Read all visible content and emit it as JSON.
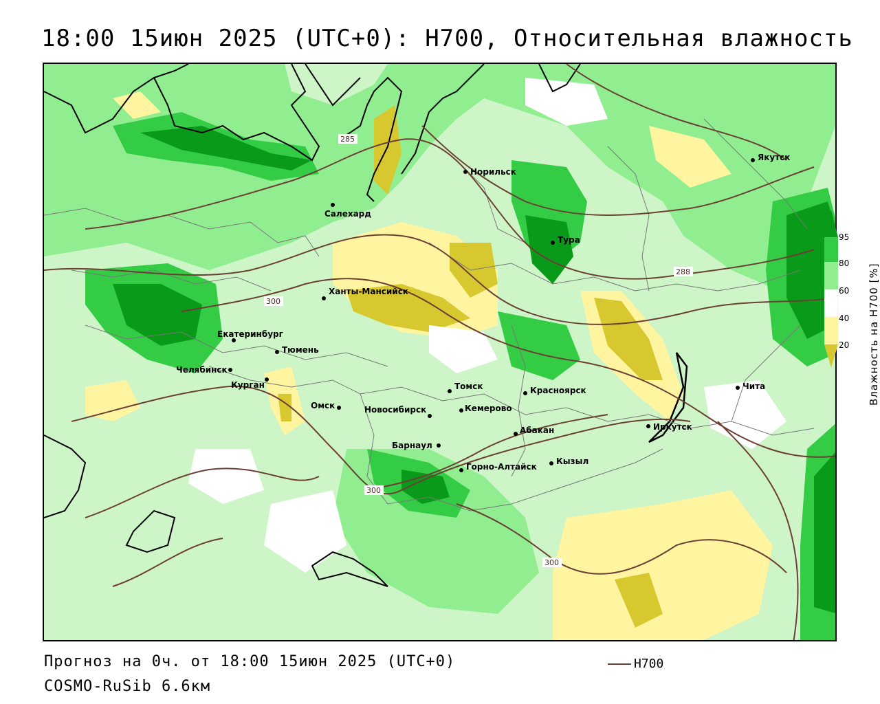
{
  "title": "18:00 15июн 2025 (UTC+0): H700, Относительная влажность",
  "footer": {
    "forecast": "Прогноз на 0ч. от 18:00 15июн 2025 (UTC+0)",
    "model": "COSMO-RuSib 6.6км",
    "contour_legend": "H700"
  },
  "colorbar": {
    "title": "Влажность на H700 [%]",
    "ticks": [
      "95",
      "80",
      "60",
      "40",
      "20"
    ],
    "colors": {
      "dark_green": "#0a9a1a",
      "green": "#33cc44",
      "light_green": "#90ee90",
      "pale_green": "#cdf5c8",
      "white": "#ffffff",
      "pale_yellow": "#fff4a0",
      "yellow": "#d8c830"
    }
  },
  "contour_color": "#6b3f34",
  "isoline_labels": [
    "285",
    "288",
    "300",
    "300",
    "300"
  ],
  "cities": [
    {
      "name": "Якутск"
    },
    {
      "name": "Норильск"
    },
    {
      "name": "Салехард"
    },
    {
      "name": "Тура"
    },
    {
      "name": "Ханты-Мансийск"
    },
    {
      "name": "Екатеринбург"
    },
    {
      "name": "Тюмень"
    },
    {
      "name": "Челябинск"
    },
    {
      "name": "Курган"
    },
    {
      "name": "Омск"
    },
    {
      "name": "Новосибирск"
    },
    {
      "name": "Томск"
    },
    {
      "name": "Кемерово"
    },
    {
      "name": "Красноярск"
    },
    {
      "name": "Абакан"
    },
    {
      "name": "Барнаул"
    },
    {
      "name": "Горно-Алтайск"
    },
    {
      "name": "Кызыл"
    },
    {
      "name": "Иркутск"
    },
    {
      "name": "Чита"
    }
  ]
}
